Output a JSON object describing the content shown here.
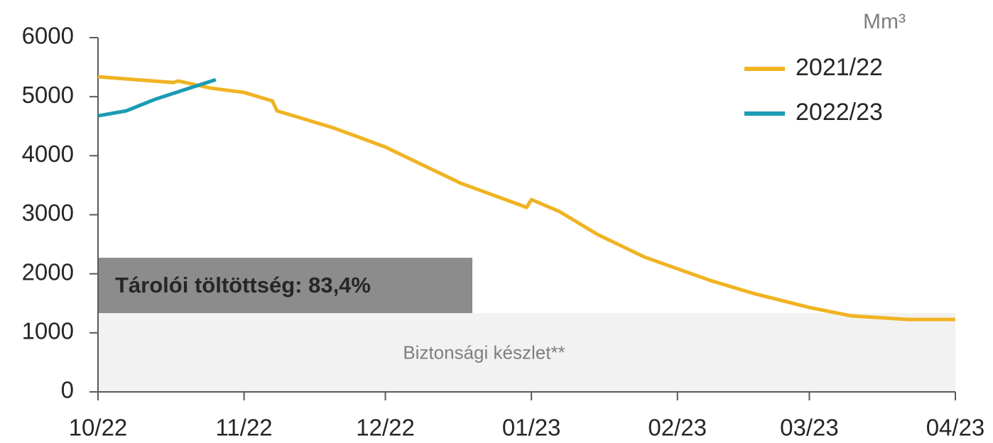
{
  "chart_data": {
    "type": "line",
    "y_unit": "Mm³",
    "annotation": "Tárolói töltöttség: 83,4%",
    "band_label": "Biztonsági készlet**",
    "band_value": 1334,
    "band_color": "#f2f2f2",
    "annotation_color": "#8c8c8c",
    "xlim": [
      0,
      182
    ],
    "xticks": [
      {
        "value": 0,
        "label": "10/22"
      },
      {
        "value": 31,
        "label": "11/22"
      },
      {
        "value": 61,
        "label": "12/22"
      },
      {
        "value": 92,
        "label": "01/23"
      },
      {
        "value": 123,
        "label": "02/23"
      },
      {
        "value": 151,
        "label": "03/23"
      },
      {
        "value": 182,
        "label": "04/23"
      }
    ],
    "ylim": [
      0,
      6000
    ],
    "yticks": [
      0,
      1000,
      2000,
      3000,
      4000,
      5000,
      6000
    ],
    "series": [
      {
        "name": "2021/22",
        "color": "#f0b323",
        "x": [
          0,
          16,
          17,
          24,
          31,
          37,
          38,
          50,
          61,
          77,
          91,
          92,
          98,
          106,
          116,
          130,
          139,
          151,
          160,
          172,
          182
        ],
        "values": [
          5337,
          5240,
          5265,
          5144,
          5072,
          4928,
          4760,
          4471,
          4147,
          3534,
          3125,
          3257,
          3053,
          2668,
          2284,
          1887,
          1671,
          1430,
          1286,
          1226,
          1226
        ]
      },
      {
        "name": "2022/23",
        "color": "#1b9bb5",
        "x": [
          0,
          6,
          12,
          18,
          25
        ],
        "values": [
          4675,
          4760,
          4952,
          5108,
          5288
        ]
      }
    ]
  }
}
